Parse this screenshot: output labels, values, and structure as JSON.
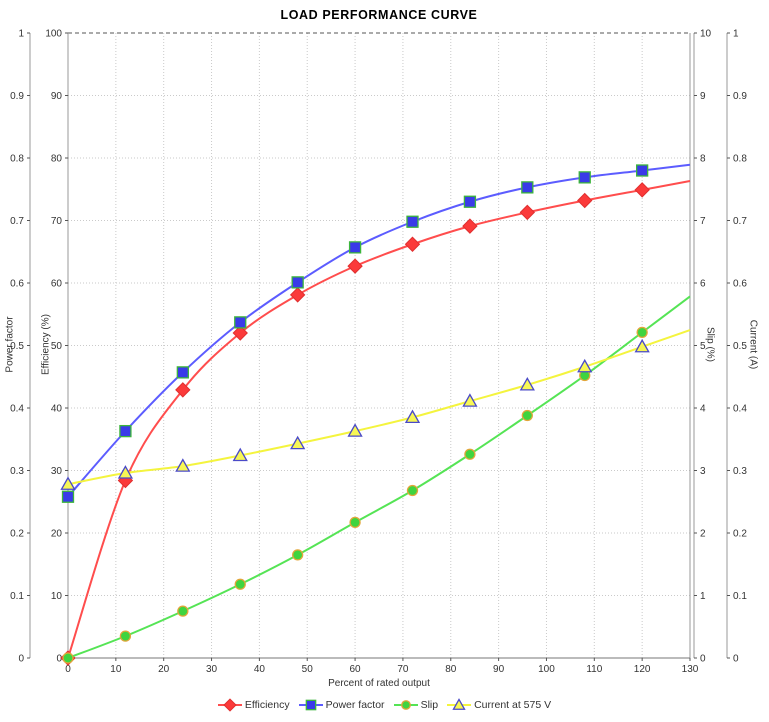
{
  "title": "LOAD PERFORMANCE CURVE",
  "chart_data": {
    "type": "line",
    "title": "LOAD PERFORMANCE CURVE",
    "grid": true,
    "legend_position": "bottom",
    "x_values": [
      0,
      12,
      24,
      36,
      48,
      60,
      72,
      84,
      96,
      108,
      120
    ],
    "axes": {
      "x": {
        "label": "Percent of rated output",
        "min": 0,
        "max": 130,
        "tick_step": 10
      },
      "power_factor": {
        "label": "Power factor",
        "min": 0,
        "max": 1,
        "tick_step": 0.1,
        "side": "left"
      },
      "efficiency": {
        "label": "Efficiency (%)",
        "min": 0,
        "max": 100,
        "tick_step": 10,
        "side": "left"
      },
      "slip": {
        "label": "Slip (%)",
        "min": 0,
        "max": 10,
        "tick_step": 1,
        "side": "right"
      },
      "current": {
        "label": "Current (A)",
        "min": 0,
        "max": 1,
        "tick_step": 0.1,
        "side": "right"
      }
    },
    "series": [
      {
        "name": "Efficiency",
        "axis": "efficiency",
        "marker": "diamond",
        "line_color": "#ff4d4d",
        "marker_fill": "#fb3a3a",
        "marker_stroke": "#e02f2f",
        "values": [
          0,
          28.4,
          42.9,
          52.0,
          58.1,
          62.7,
          66.2,
          69.1,
          71.3,
          73.2,
          74.9
        ]
      },
      {
        "name": "Power factor",
        "axis": "power_factor",
        "marker": "square",
        "line_color": "#5c5cff",
        "marker_fill": "#3a3ae8",
        "marker_stroke": "#3cb53c",
        "values": [
          0.258,
          0.363,
          0.457,
          0.537,
          0.601,
          0.657,
          0.698,
          0.73,
          0.753,
          0.769,
          0.78
        ]
      },
      {
        "name": "Slip",
        "axis": "slip",
        "marker": "circle",
        "line_color": "#55e455",
        "marker_fill": "#3fd43f",
        "marker_stroke": "#e2a63a",
        "values": [
          0,
          0.35,
          0.75,
          1.18,
          1.65,
          2.17,
          2.68,
          3.26,
          3.88,
          4.52,
          5.21
        ]
      },
      {
        "name": "Current at 575 V",
        "axis": "current",
        "marker": "triangle",
        "line_color": "#f4f43e",
        "marker_fill": "#f7f755",
        "marker_stroke": "#4a4ac8",
        "values": [
          0.278,
          0.296,
          0.307,
          0.324,
          0.343,
          0.363,
          0.385,
          0.411,
          0.437,
          0.466,
          0.498
        ]
      }
    ]
  }
}
